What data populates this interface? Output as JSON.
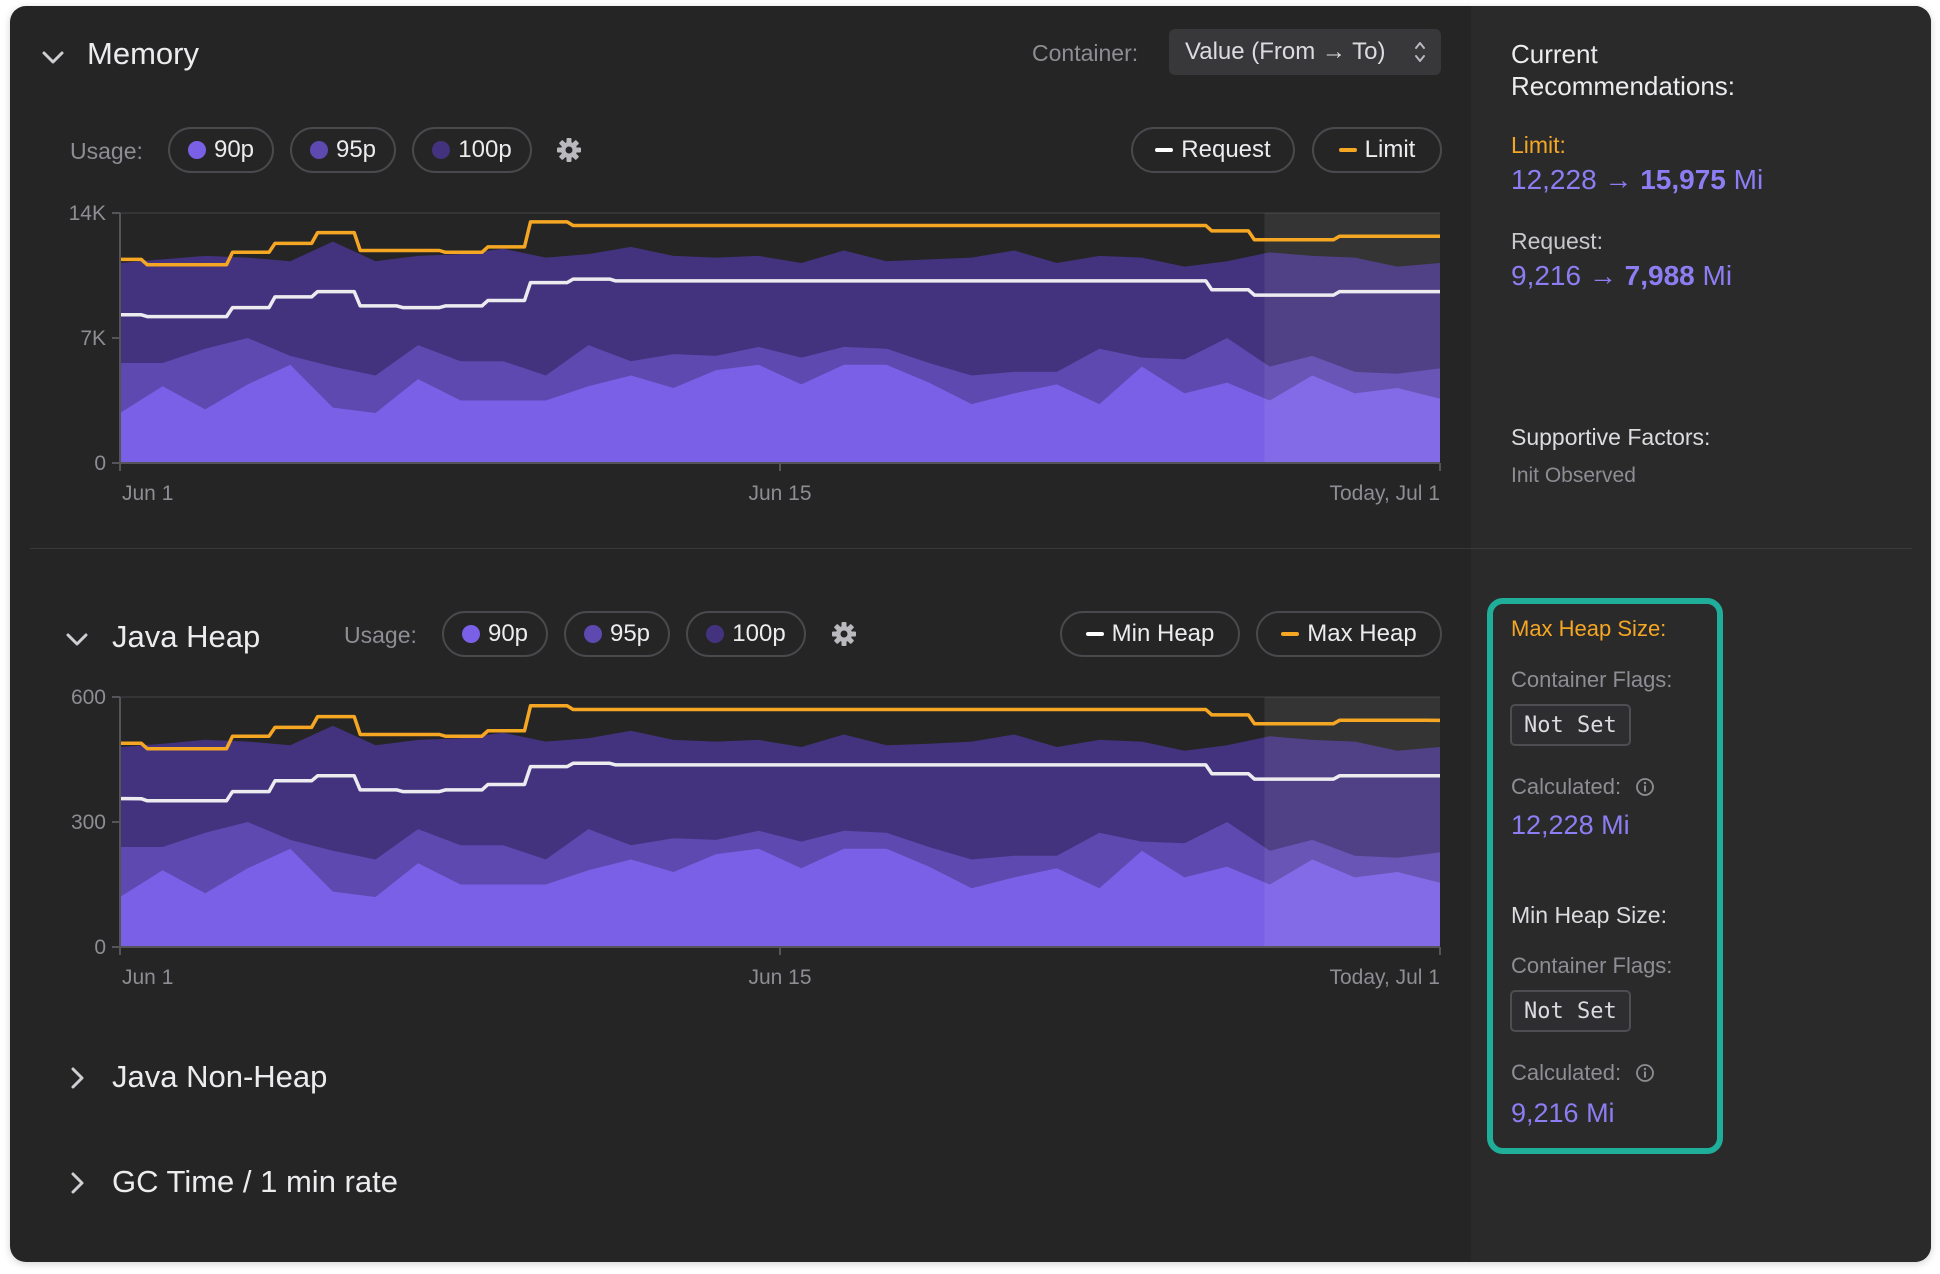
{
  "colors": {
    "orange": "#f5a623",
    "purple_text": "#8c7ef2",
    "p90": "#7a60e6",
    "p95": "#5e49b0",
    "p100": "#43337e",
    "teal_highlight": "#1fae9a"
  },
  "memory": {
    "title": "Memory",
    "container_label": "Container:",
    "container_value": "Value (From → To)",
    "usage_label": "Usage:",
    "usage_pills": [
      {
        "label": "90p",
        "color": "#7a60e6"
      },
      {
        "label": "95p",
        "color": "#5e49b0"
      },
      {
        "label": "100p",
        "color": "#43337e"
      }
    ],
    "legend": [
      {
        "label": "Request",
        "color": "#ffffff"
      },
      {
        "label": "Limit",
        "color": "#f5a623"
      }
    ]
  },
  "java_heap": {
    "title": "Java Heap",
    "usage_label": "Usage:",
    "usage_pills": [
      {
        "label": "90p",
        "color": "#7a60e6"
      },
      {
        "label": "95p",
        "color": "#5e49b0"
      },
      {
        "label": "100p",
        "color": "#43337e"
      }
    ],
    "legend": [
      {
        "label": "Min Heap",
        "color": "#ffffff"
      },
      {
        "label": "Max Heap",
        "color": "#f5a623"
      }
    ]
  },
  "collapsed_sections": [
    {
      "title": "Java Non-Heap"
    },
    {
      "title": "GC Time / 1 min rate"
    }
  ],
  "chart_data": [
    {
      "type": "area",
      "x_labels": [
        "Jun 1",
        "Jun 15",
        "Today, Jul 1"
      ],
      "y_ticks": [
        "0",
        "7K",
        "14K"
      ],
      "ylim": [
        0,
        14000
      ],
      "series": [
        {
          "name": "100p",
          "values": [
            11200,
            11400,
            11600,
            11500,
            11300,
            12400,
            11300,
            11600,
            11700,
            12000,
            11500,
            11700,
            12100,
            11600,
            11500,
            11600,
            11200,
            11900,
            11300,
            11400,
            11500,
            11900,
            11200,
            11600,
            11500,
            11000,
            11300,
            11800,
            11600,
            11500,
            11000,
            11200
          ]
        },
        {
          "name": "95p",
          "values": [
            5600,
            5600,
            6400,
            7000,
            6000,
            5400,
            4900,
            6600,
            5700,
            5700,
            4900,
            6600,
            5700,
            6100,
            6000,
            6500,
            5900,
            6500,
            6400,
            5600,
            4900,
            5100,
            5100,
            6400,
            5900,
            5800,
            7000,
            5400,
            6000,
            5100,
            5000,
            5300
          ]
        },
        {
          "name": "90p",
          "values": [
            2800,
            4300,
            3000,
            4400,
            5500,
            3100,
            2800,
            4700,
            3500,
            3500,
            3500,
            4300,
            4900,
            4200,
            5200,
            5500,
            4400,
            5500,
            5500,
            4500,
            3300,
            3900,
            4400,
            3300,
            5400,
            3900,
            4500,
            3500,
            4900,
            3900,
            4200,
            3600
          ]
        },
        {
          "name": "Limit",
          "values": [
            11400,
            11100,
            11100,
            11800,
            12300,
            12900,
            11900,
            11900,
            11800,
            12100,
            13500,
            13300,
            13300,
            13300,
            13300,
            13300,
            13300,
            13300,
            13300,
            13300,
            13300,
            13300,
            13300,
            13300,
            13300,
            13300,
            13000,
            12500,
            12500,
            12700,
            12700,
            12700
          ]
        },
        {
          "name": "Request",
          "values": [
            8300,
            8200,
            8200,
            8700,
            9300,
            9600,
            8800,
            8700,
            8800,
            9100,
            10100,
            10300,
            10200,
            10200,
            10200,
            10200,
            10200,
            10200,
            10200,
            10200,
            10200,
            10200,
            10200,
            10200,
            10200,
            10200,
            9700,
            9400,
            9400,
            9600,
            9600,
            9600
          ]
        }
      ]
    },
    {
      "type": "area",
      "x_labels": [
        "Jun 1",
        "Jun 15",
        "Today, Jul 1"
      ],
      "y_ticks": [
        "0",
        "300",
        "600"
      ],
      "ylim": [
        0,
        600
      ],
      "series": [
        {
          "name": "100p",
          "values": [
            480,
            488,
            497,
            493,
            484,
            531,
            484,
            497,
            501,
            514,
            493,
            501,
            519,
            497,
            493,
            497,
            480,
            510,
            484,
            488,
            493,
            510,
            480,
            497,
            493,
            471,
            484,
            506,
            497,
            493,
            471,
            480
          ]
        },
        {
          "name": "95p",
          "values": [
            240,
            240,
            274,
            300,
            257,
            231,
            210,
            283,
            244,
            244,
            210,
            283,
            244,
            261,
            257,
            279,
            253,
            279,
            274,
            240,
            210,
            219,
            219,
            274,
            253,
            249,
            300,
            231,
            257,
            219,
            214,
            227
          ]
        },
        {
          "name": "90p",
          "values": [
            120,
            184,
            129,
            189,
            236,
            133,
            120,
            201,
            150,
            150,
            150,
            184,
            210,
            180,
            223,
            236,
            189,
            236,
            236,
            193,
            141,
            167,
            189,
            141,
            231,
            167,
            193,
            150,
            210,
            167,
            180,
            154
          ]
        },
        {
          "name": "Max Heap",
          "values": [
            489,
            476,
            476,
            506,
            527,
            553,
            510,
            510,
            506,
            519,
            579,
            570,
            570,
            570,
            570,
            570,
            570,
            570,
            570,
            570,
            570,
            570,
            570,
            570,
            570,
            570,
            557,
            536,
            536,
            544,
            544,
            544
          ]
        },
        {
          "name": "Min Heap",
          "values": [
            356,
            351,
            351,
            373,
            399,
            411,
            377,
            373,
            377,
            390,
            433,
            441,
            437,
            437,
            437,
            437,
            437,
            437,
            437,
            437,
            437,
            437,
            437,
            437,
            437,
            437,
            416,
            403,
            403,
            411,
            411,
            411
          ]
        }
      ]
    }
  ],
  "recommendations": {
    "heading": "Current Recommendations:",
    "limit_label": "Limit:",
    "limit_from": "12,228",
    "limit_arrow": "→",
    "limit_to": "15,975",
    "limit_unit": "Mi",
    "request_label": "Request:",
    "request_from": "9,216",
    "request_arrow": "→",
    "request_to": "7,988",
    "request_unit": "Mi",
    "supportive_label": "Supportive Factors:",
    "supportive_value": "Init Observed"
  },
  "heap_recs": {
    "max_label": "Max Heap Size:",
    "max_flags_label": "Container Flags:",
    "max_flags_value": "Not Set",
    "max_calc_label": "Calculated:",
    "max_calc_value": "12,228 Mi",
    "min_label": "Min Heap Size:",
    "min_flags_label": "Container Flags:",
    "min_flags_value": "Not Set",
    "min_calc_label": "Calculated:",
    "min_calc_value": "9,216 Mi"
  }
}
